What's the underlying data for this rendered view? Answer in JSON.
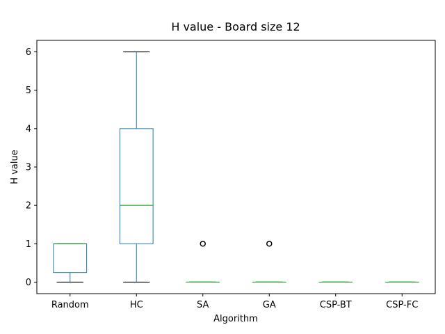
{
  "chart_data": {
    "type": "box",
    "title": "H value - Board size 12",
    "xlabel": "Algorithm",
    "ylabel": "H value",
    "ylim": [
      -0.3,
      6.3
    ],
    "yticks": [
      0,
      1,
      2,
      3,
      4,
      5,
      6
    ],
    "categories": [
      "Random",
      "HC",
      "SA",
      "GA",
      "CSP-BT",
      "CSP-FC"
    ],
    "boxes": [
      {
        "whisker_low": 0,
        "q1": 0.25,
        "median": 1,
        "q3": 1,
        "whisker_high": 1,
        "outliers": []
      },
      {
        "whisker_low": 0,
        "q1": 1,
        "median": 2,
        "q3": 4,
        "whisker_high": 6,
        "outliers": []
      },
      {
        "whisker_low": 0,
        "q1": 0,
        "median": 0,
        "q3": 0,
        "whisker_high": 0,
        "outliers": [
          1
        ]
      },
      {
        "whisker_low": 0,
        "q1": 0,
        "median": 0,
        "q3": 0,
        "whisker_high": 0,
        "outliers": [
          1
        ]
      },
      {
        "whisker_low": 0,
        "q1": 0,
        "median": 0,
        "q3": 0,
        "whisker_high": 0,
        "outliers": []
      },
      {
        "whisker_low": 0,
        "q1": 0,
        "median": 0,
        "q3": 0,
        "whisker_high": 0,
        "outliers": []
      }
    ],
    "grid": false,
    "colors": {
      "box": "#1f77b4",
      "median": "#2ca02c",
      "whisker_cap": "#000000",
      "outlier": "#000000"
    }
  }
}
